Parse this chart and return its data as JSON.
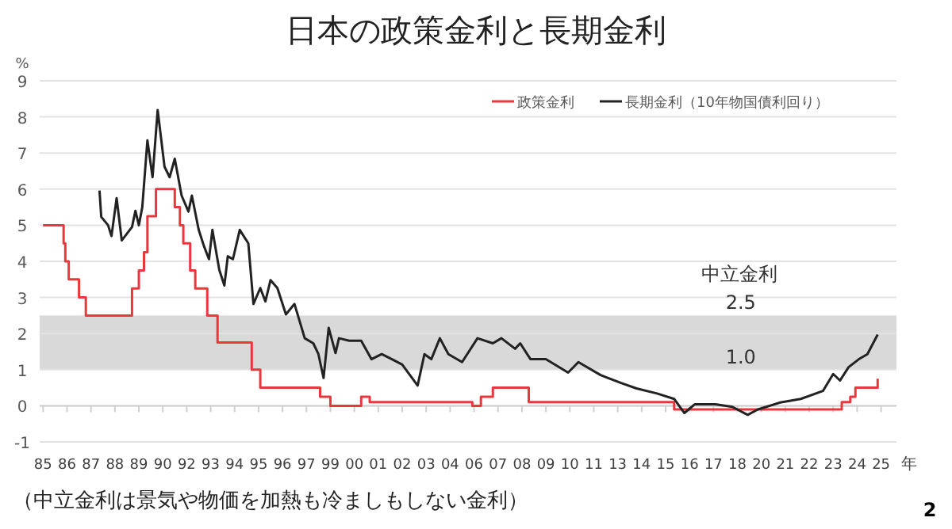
{
  "chart_data": {
    "type": "line",
    "title": "日本の政策金利と長期金利",
    "xlabel": "年",
    "ylabel": "%",
    "xlim": [
      "1984-11",
      "2026-08"
    ],
    "ylim": [
      -1,
      9
    ],
    "yticks": [
      -1,
      0,
      1,
      2,
      3,
      4,
      5,
      6,
      7,
      8,
      9
    ],
    "xticks": [
      {
        "value": "1985-01",
        "label": "85"
      },
      {
        "value": "1986-03",
        "label": "86"
      },
      {
        "value": "1987-05",
        "label": "87"
      },
      {
        "value": "1988-07",
        "label": "88"
      },
      {
        "value": "1989-09",
        "label": "89"
      },
      {
        "value": "1990-11",
        "label": "90"
      },
      {
        "value": "1992-01",
        "label": "92"
      },
      {
        "value": "1993-03",
        "label": "93"
      },
      {
        "value": "1994-05",
        "label": "94"
      },
      {
        "value": "1995-07",
        "label": "95"
      },
      {
        "value": "1996-09",
        "label": "96"
      },
      {
        "value": "1997-11",
        "label": "97"
      },
      {
        "value": "1999-01",
        "label": "99"
      },
      {
        "value": "2000-03",
        "label": "00"
      },
      {
        "value": "2001-05",
        "label": "01"
      },
      {
        "value": "2002-07",
        "label": "02"
      },
      {
        "value": "2003-09",
        "label": "03"
      },
      {
        "value": "2004-11",
        "label": "04"
      },
      {
        "value": "2006-01",
        "label": "06"
      },
      {
        "value": "2007-03",
        "label": "07"
      },
      {
        "value": "2008-05",
        "label": "08"
      },
      {
        "value": "2009-07",
        "label": "09"
      },
      {
        "value": "2010-09",
        "label": "10"
      },
      {
        "value": "2011-11",
        "label": "11"
      },
      {
        "value": "2013-01",
        "label": "13"
      },
      {
        "value": "2014-03",
        "label": "14"
      },
      {
        "value": "2015-05",
        "label": "15"
      },
      {
        "value": "2016-07",
        "label": "16"
      },
      {
        "value": "2017-09",
        "label": "17"
      },
      {
        "value": "2018-11",
        "label": "18"
      },
      {
        "value": "2020-01",
        "label": "20"
      },
      {
        "value": "2021-03",
        "label": "21"
      },
      {
        "value": "2022-05",
        "label": "22"
      },
      {
        "value": "2023-07",
        "label": "23"
      },
      {
        "value": "2024-09",
        "label": "24"
      },
      {
        "value": "2025-11",
        "label": "25"
      }
    ],
    "grid": "y",
    "legend": "top right",
    "marker": "none",
    "bands": [
      {
        "axis": "y",
        "from": 1,
        "to": 2.5,
        "label": "中立金利",
        "color": "#d9d9d9"
      }
    ],
    "annotations": [
      {
        "text": "2.5",
        "x": "2019-01",
        "y": 2.5
      },
      {
        "text": "1.0",
        "x": "2019-01",
        "y": 1.0
      },
      "（中立金利は景気や物価を加熱も冷ましもしない金利）",
      "2"
    ],
    "series": [
      {
        "name": "政策金利",
        "type": "step",
        "color": "#e8383d",
        "x": [
          "1985-01",
          "1986-01",
          "1986-02",
          "1986-04",
          "1986-10",
          "1987-02",
          "1989-05",
          "1989-09",
          "1989-12",
          "1990-02",
          "1990-07",
          "1991-06",
          "1991-09",
          "1991-11",
          "1992-03",
          "1992-06",
          "1993-01",
          "1993-07",
          "1995-03",
          "1995-08",
          "1998-07",
          "1999-01",
          "2000-07",
          "2000-12",
          "2005-12",
          "2006-05",
          "2006-12",
          "2008-09",
          "2015-10",
          "2023-12",
          "2024-05",
          "2024-08",
          "2025-09"
        ],
        "values": [
          5,
          4.5,
          4.0,
          3.5,
          3.0,
          2.5,
          3.25,
          3.75,
          4.25,
          5.25,
          6.0,
          5.5,
          5.0,
          4.5,
          3.75,
          3.25,
          2.5,
          1.75,
          1.0,
          0.5,
          0.25,
          0,
          0.25,
          0.1,
          0,
          0.25,
          0.5,
          0.1,
          -0.1,
          0.1,
          0.25,
          0.5,
          0.75
        ]
      },
      {
        "name": "長期金利（10年物国債利回り）",
        "color": "#222222",
        "x": [
          "1987-10",
          "1987-11",
          "1988-03",
          "1988-05",
          "1988-08",
          "1988-11",
          "1989-05",
          "1989-07",
          "1989-09",
          "1989-11",
          "1990-02",
          "1990-05",
          "1990-08",
          "1990-12",
          "1991-03",
          "1991-06",
          "1991-10",
          "1992-02",
          "1992-04",
          "1992-08",
          "1992-11",
          "1993-02",
          "1993-04",
          "1993-08",
          "1993-11",
          "1994-01",
          "1994-04",
          "1994-08",
          "1995-01",
          "1995-04",
          "1995-08",
          "1995-11",
          "1996-02",
          "1996-06",
          "1996-11",
          "1997-04",
          "1997-10",
          "1998-03",
          "1998-06",
          "1998-09",
          "1998-12",
          "1999-04",
          "1999-06",
          "1999-12",
          "2000-07",
          "2001-01",
          "2001-07",
          "2002-01",
          "2002-07",
          "2003-04",
          "2003-08",
          "2003-12",
          "2004-05",
          "2004-10",
          "2005-06",
          "2006-03",
          "2006-12",
          "2007-05",
          "2008-01",
          "2008-04",
          "2008-10",
          "2009-07",
          "2010-08",
          "2011-02",
          "2012-03",
          "2013-03",
          "2013-12",
          "2014-12",
          "2015-10",
          "2016-04",
          "2016-10",
          "2017-10",
          "2018-08",
          "2019-05",
          "2019-11",
          "2020-12",
          "2021-12",
          "2023-01",
          "2023-07",
          "2023-11",
          "2024-04",
          "2024-10",
          "2025-03",
          "2025-09"
        ],
        "values": [
          5.96,
          5.23,
          5.0,
          4.7,
          5.75,
          4.58,
          4.95,
          5.4,
          5.0,
          5.5,
          7.35,
          6.33,
          8.19,
          6.62,
          6.33,
          6.84,
          5.82,
          5.38,
          5.82,
          4.87,
          4.43,
          4.06,
          4.87,
          3.77,
          3.33,
          4.14,
          4.06,
          4.87,
          4.5,
          2.82,
          3.26,
          2.89,
          3.48,
          3.26,
          2.53,
          2.82,
          1.87,
          1.73,
          1.43,
          0.77,
          2.16,
          1.46,
          1.87,
          1.8,
          1.8,
          1.29,
          1.43,
          1.29,
          1.14,
          0.56,
          1.43,
          1.29,
          1.87,
          1.43,
          1.21,
          1.87,
          1.73,
          1.87,
          1.58,
          1.73,
          1.29,
          1.29,
          0.92,
          1.21,
          0.85,
          0.63,
          0.48,
          0.34,
          0.19,
          -0.2,
          0.04,
          0.04,
          -0.03,
          -0.25,
          -0.1,
          0.09,
          0.19,
          0.41,
          0.88,
          0.7,
          1.07,
          1.29,
          1.43,
          1.97
        ]
      }
    ]
  }
}
